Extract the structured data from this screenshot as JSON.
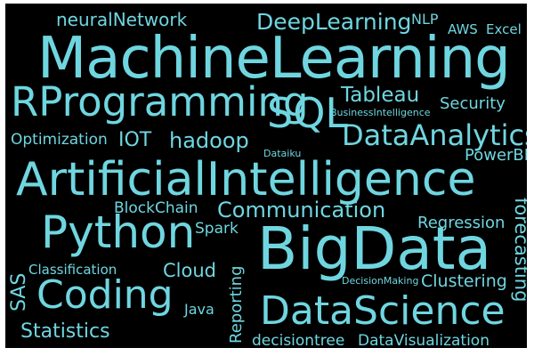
{
  "wordcloud": {
    "background": "#000000",
    "text_color": "#6fd6e0",
    "words": [
      {
        "id": "machinelearning",
        "text": "MachineLearning",
        "orientation": "horizontal"
      },
      {
        "id": "artificialintelligence",
        "text": "ArtificialIntelligence",
        "orientation": "horizontal"
      },
      {
        "id": "bigdata",
        "text": "BigData",
        "orientation": "horizontal"
      },
      {
        "id": "datascience",
        "text": "DataScience",
        "orientation": "horizontal"
      },
      {
        "id": "rprogramming",
        "text": "RProgramming",
        "orientation": "horizontal"
      },
      {
        "id": "python",
        "text": "Python",
        "orientation": "horizontal"
      },
      {
        "id": "coding",
        "text": "Coding",
        "orientation": "horizontal"
      },
      {
        "id": "sql",
        "text": "SQL",
        "orientation": "horizontal"
      },
      {
        "id": "deeplearning",
        "text": "DeepLearning",
        "orientation": "horizontal"
      },
      {
        "id": "dataanalytics",
        "text": "DataAnalytics",
        "orientation": "horizontal"
      },
      {
        "id": "tableau",
        "text": "Tableau",
        "orientation": "horizontal"
      },
      {
        "id": "neuralnetwork",
        "text": "neuralNetwork",
        "orientation": "horizontal"
      },
      {
        "id": "nlp",
        "text": "NLP",
        "orientation": "horizontal"
      },
      {
        "id": "aws",
        "text": "AWS",
        "orientation": "horizontal"
      },
      {
        "id": "excel",
        "text": "Excel",
        "orientation": "horizontal"
      },
      {
        "id": "security",
        "text": "Security",
        "orientation": "horizontal"
      },
      {
        "id": "businessintelligence",
        "text": "BusinessIntelligence",
        "orientation": "horizontal"
      },
      {
        "id": "optimization",
        "text": "Optimization",
        "orientation": "horizontal"
      },
      {
        "id": "iot",
        "text": "IOT",
        "orientation": "horizontal"
      },
      {
        "id": "hadoop",
        "text": "hadoop",
        "orientation": "horizontal"
      },
      {
        "id": "dataiku",
        "text": "Dataiku",
        "orientation": "horizontal"
      },
      {
        "id": "powerbi",
        "text": "PowerBI",
        "orientation": "horizontal"
      },
      {
        "id": "blockchain",
        "text": "BlockChain",
        "orientation": "horizontal"
      },
      {
        "id": "communication",
        "text": "Communication",
        "orientation": "horizontal"
      },
      {
        "id": "regression",
        "text": "Regression",
        "orientation": "horizontal"
      },
      {
        "id": "spark",
        "text": "Spark",
        "orientation": "horizontal"
      },
      {
        "id": "classification",
        "text": "Classification",
        "orientation": "horizontal"
      },
      {
        "id": "cloud",
        "text": "Cloud",
        "orientation": "horizontal"
      },
      {
        "id": "decisionmaking",
        "text": "DecisionMaking",
        "orientation": "horizontal"
      },
      {
        "id": "clustering",
        "text": "Clustering",
        "orientation": "horizontal"
      },
      {
        "id": "java",
        "text": "Java",
        "orientation": "horizontal"
      },
      {
        "id": "statistics",
        "text": "Statistics",
        "orientation": "horizontal"
      },
      {
        "id": "decisiontree",
        "text": "decisiontree",
        "orientation": "horizontal"
      },
      {
        "id": "datavisualization",
        "text": "DataVisualization",
        "orientation": "horizontal"
      },
      {
        "id": "sas",
        "text": "SAS",
        "orientation": "vertical"
      },
      {
        "id": "reporting",
        "text": "Reporting",
        "orientation": "vertical"
      },
      {
        "id": "forecasting",
        "text": "forecasting",
        "orientation": "vertical"
      }
    ]
  }
}
